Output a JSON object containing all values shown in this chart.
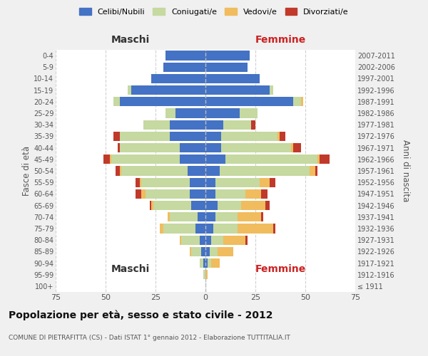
{
  "age_groups": [
    "100+",
    "95-99",
    "90-94",
    "85-89",
    "80-84",
    "75-79",
    "70-74",
    "65-69",
    "60-64",
    "55-59",
    "50-54",
    "45-49",
    "40-44",
    "35-39",
    "30-34",
    "25-29",
    "20-24",
    "15-19",
    "10-14",
    "5-9",
    "0-4"
  ],
  "birth_years": [
    "≤ 1911",
    "1912-1916",
    "1917-1921",
    "1922-1926",
    "1927-1931",
    "1932-1936",
    "1937-1941",
    "1942-1946",
    "1947-1951",
    "1952-1956",
    "1957-1961",
    "1962-1966",
    "1967-1971",
    "1972-1976",
    "1977-1981",
    "1982-1986",
    "1987-1991",
    "1992-1996",
    "1997-2001",
    "2002-2006",
    "2007-2011"
  ],
  "male": {
    "celibe": [
      0,
      0,
      1,
      2,
      3,
      5,
      4,
      7,
      8,
      8,
      9,
      13,
      13,
      18,
      18,
      15,
      43,
      37,
      27,
      21,
      20
    ],
    "coniugato": [
      0,
      1,
      2,
      5,
      9,
      16,
      14,
      19,
      22,
      24,
      33,
      34,
      30,
      25,
      13,
      5,
      3,
      2,
      0,
      0,
      0
    ],
    "vedovo": [
      0,
      0,
      0,
      1,
      1,
      2,
      1,
      1,
      2,
      1,
      1,
      1,
      0,
      0,
      0,
      0,
      0,
      0,
      0,
      0,
      0
    ],
    "divorziato": [
      0,
      0,
      0,
      0,
      0,
      0,
      0,
      1,
      3,
      2,
      2,
      3,
      1,
      3,
      0,
      0,
      0,
      0,
      0,
      0,
      0
    ]
  },
  "female": {
    "nubile": [
      0,
      0,
      1,
      2,
      3,
      4,
      5,
      6,
      5,
      5,
      7,
      10,
      8,
      8,
      9,
      17,
      44,
      32,
      27,
      21,
      22
    ],
    "coniugata": [
      0,
      0,
      2,
      4,
      6,
      12,
      11,
      12,
      15,
      22,
      45,
      46,
      35,
      28,
      14,
      9,
      4,
      2,
      0,
      0,
      0
    ],
    "vedova": [
      0,
      1,
      4,
      8,
      11,
      18,
      12,
      12,
      8,
      5,
      3,
      1,
      1,
      1,
      0,
      0,
      1,
      0,
      0,
      0,
      0
    ],
    "divorziata": [
      0,
      0,
      0,
      0,
      1,
      1,
      1,
      2,
      3,
      3,
      1,
      5,
      4,
      3,
      2,
      0,
      0,
      0,
      0,
      0,
      0
    ]
  },
  "colors": {
    "celibe": "#4472c4",
    "coniugato": "#c5d9a0",
    "vedovo": "#f0bc5e",
    "divorziato": "#c0392b"
  },
  "xlim": 75,
  "title": "Popolazione per età, sesso e stato civile - 2012",
  "subtitle": "COMUNE DI PIETRAFITTA (CS) - Dati ISTAT 1° gennaio 2012 - Elaborazione TUTTITALIA.IT",
  "ylabel_left": "Fasce di età",
  "ylabel_right": "Anni di nascita",
  "xlabel_left": "Maschi",
  "xlabel_right": "Femmine",
  "legend_labels": [
    "Celibi/Nubili",
    "Coniugati/e",
    "Vedovi/e",
    "Divorziati/e"
  ],
  "bg_color": "#f0f0f0",
  "plot_bg": "#ffffff"
}
